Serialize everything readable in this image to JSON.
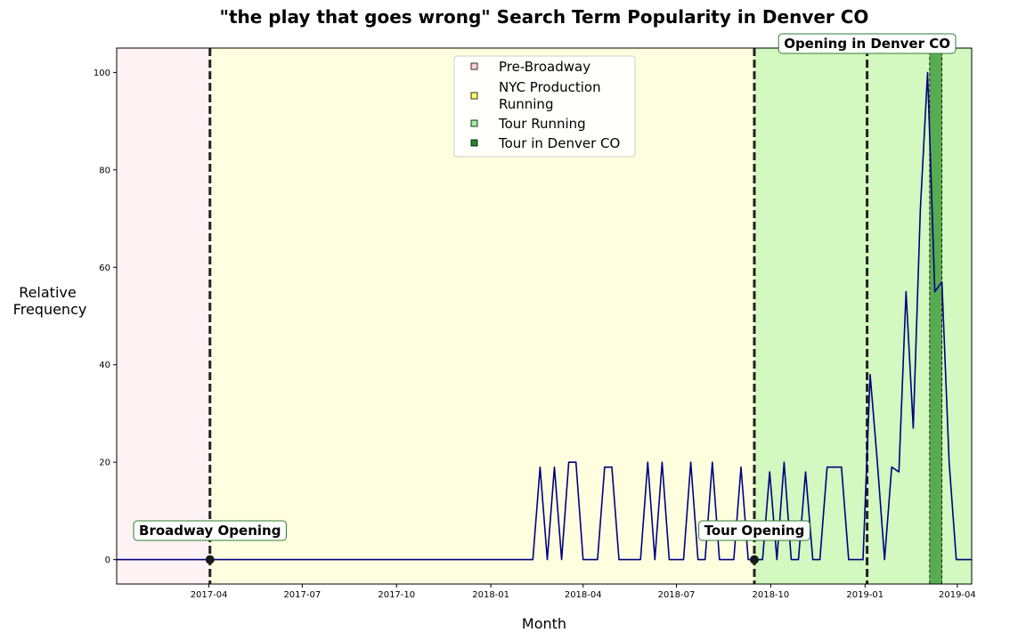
{
  "chart_data": {
    "type": "line",
    "title": "\"the play that goes wrong\" Search Term Popularity in Denver CO",
    "xlabel": "Month",
    "ylabel_lines": [
      "Relative",
      "Frequency"
    ],
    "x_range": [
      "2017-01-01",
      "2019-04-15"
    ],
    "ylim": [
      -5,
      105
    ],
    "y_ticks": [
      0,
      20,
      40,
      60,
      80,
      100
    ],
    "x_ticks": [
      {
        "date": "2017-04-01",
        "label": "2017-04"
      },
      {
        "date": "2017-07-01",
        "label": "2017-07"
      },
      {
        "date": "2017-10-01",
        "label": "2017-10"
      },
      {
        "date": "2018-01-01",
        "label": "2018-01"
      },
      {
        "date": "2018-04-01",
        "label": "2018-04"
      },
      {
        "date": "2018-07-01",
        "label": "2018-07"
      },
      {
        "date": "2018-10-01",
        "label": "2018-10"
      },
      {
        "date": "2019-01-01",
        "label": "2019-01"
      },
      {
        "date": "2019-04-01",
        "label": "2019-04"
      }
    ],
    "grid": false,
    "legend_position": "top-center",
    "regions": [
      {
        "label": "Pre-Broadway",
        "start": "2017-01-01",
        "end": "2017-04-02",
        "color": "#ffb6c1",
        "opacity": 0.18
      },
      {
        "label": "NYC Production Running",
        "start": "2017-04-02",
        "end": "2019-04-15",
        "color": "#ffff00",
        "opacity": 0.12
      },
      {
        "label": "Tour Running",
        "start": "2018-09-15",
        "end": "2019-04-15",
        "color": "#90ee90",
        "opacity": 0.4
      },
      {
        "label": "Tour in Denver CO",
        "start": "2019-03-05",
        "end": "2019-03-17",
        "color": "#228b22",
        "opacity": 0.7
      }
    ],
    "event_lines": [
      {
        "date": "2017-04-02",
        "label": "Broadway Opening",
        "marker_y": 0
      },
      {
        "date": "2018-09-15",
        "label": "Tour Opening",
        "marker_y": 0
      },
      {
        "date": "2019-01-03",
        "label": "Opening in Denver CO",
        "marker_y": null
      }
    ],
    "series": [
      {
        "color": "#000080",
        "points": [
          [
            "2017-01-01",
            0
          ],
          [
            "2018-02-11",
            0
          ],
          [
            "2018-02-18",
            19
          ],
          [
            "2018-02-25",
            0
          ],
          [
            "2018-03-04",
            19
          ],
          [
            "2018-03-11",
            0
          ],
          [
            "2018-03-18",
            20
          ],
          [
            "2018-03-25",
            20
          ],
          [
            "2018-04-01",
            0
          ],
          [
            "2018-04-15",
            0
          ],
          [
            "2018-04-22",
            19
          ],
          [
            "2018-04-29",
            19
          ],
          [
            "2018-05-06",
            0
          ],
          [
            "2018-05-27",
            0
          ],
          [
            "2018-06-03",
            20
          ],
          [
            "2018-06-10",
            0
          ],
          [
            "2018-06-17",
            20
          ],
          [
            "2018-06-24",
            0
          ],
          [
            "2018-07-08",
            0
          ],
          [
            "2018-07-15",
            20
          ],
          [
            "2018-07-22",
            0
          ],
          [
            "2018-07-29",
            0
          ],
          [
            "2018-08-05",
            20
          ],
          [
            "2018-08-12",
            0
          ],
          [
            "2018-08-26",
            0
          ],
          [
            "2018-09-02",
            19
          ],
          [
            "2018-09-09",
            0
          ],
          [
            "2018-09-23",
            0
          ],
          [
            "2018-09-30",
            18
          ],
          [
            "2018-10-07",
            0
          ],
          [
            "2018-10-14",
            20
          ],
          [
            "2018-10-21",
            0
          ],
          [
            "2018-10-28",
            0
          ],
          [
            "2018-11-04",
            18
          ],
          [
            "2018-11-11",
            0
          ],
          [
            "2018-11-18",
            0
          ],
          [
            "2018-11-25",
            19
          ],
          [
            "2018-12-02",
            19
          ],
          [
            "2018-12-09",
            19
          ],
          [
            "2018-12-16",
            0
          ],
          [
            "2018-12-23",
            0
          ],
          [
            "2018-12-30",
            0
          ],
          [
            "2019-01-06",
            38
          ],
          [
            "2019-01-13",
            20
          ],
          [
            "2019-01-20",
            0
          ],
          [
            "2019-01-27",
            19
          ],
          [
            "2019-02-03",
            18
          ],
          [
            "2019-02-10",
            55
          ],
          [
            "2019-02-17",
            27
          ],
          [
            "2019-02-24",
            72
          ],
          [
            "2019-03-03",
            100
          ],
          [
            "2019-03-10",
            55
          ],
          [
            "2019-03-17",
            57
          ],
          [
            "2019-03-24",
            20
          ],
          [
            "2019-03-31",
            0
          ],
          [
            "2019-04-15",
            0
          ]
        ]
      }
    ]
  }
}
